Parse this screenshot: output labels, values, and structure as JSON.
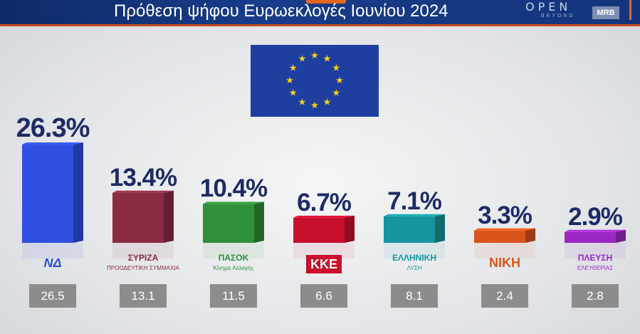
{
  "header": {
    "title": "Πρόθεση ψήφου Ευρωεκλογές Ιουνίου 2024",
    "logo_open": "OPEN",
    "logo_beyond": "BEYOND",
    "logo_mrb": "MRB"
  },
  "colors": {
    "header_bg": "#14357c",
    "accent": "#e8641e",
    "percent_text": "#1d2b66",
    "previous_box": "#8c8c8c",
    "eu_blue": "#1f3fa0",
    "eu_star": "#f7d417"
  },
  "chart_data": {
    "type": "bar",
    "title": "Πρόθεση ψήφου Ευρωεκλογές Ιουνίου 2024",
    "ylim": [
      0,
      30
    ],
    "categories": [
      "ND",
      "SYRIZA",
      "PASOK",
      "KKE",
      "ELLINIKI LYSI",
      "NIKI",
      "PLEFSI ELEFTHERIAS"
    ],
    "series": [
      {
        "values": [
          26.3,
          13.4,
          10.4,
          6.7,
          7.1,
          3.3,
          2.9
        ]
      }
    ],
    "value_labels": [
      "26.3%",
      "13.4%",
      "10.4%",
      "6.7%",
      "7.1%",
      "3.3%",
      "2.9%"
    ],
    "previous_values": [
      26.5,
      13.1,
      11.5,
      6.6,
      8.1,
      2.4,
      2.8
    ],
    "previous_labels": [
      "26.5",
      "13.1",
      "11.5",
      "6.6",
      "8.1",
      "2.4",
      "2.8"
    ],
    "bar_colors": [
      "#2f4fe0",
      "#8a2c44",
      "#2f8f3a",
      "#c8102e",
      "#17949c",
      "#d9541a",
      "#9b28c4"
    ],
    "grid": false,
    "legend": "none"
  },
  "parties": [
    {
      "logo_text": "ΝΔ",
      "logo_icon": "nd-logo-icon"
    },
    {
      "logo_text": "ΣΥΡΙΖΑ",
      "logo_sub": "ΠΡΟΟΔΕΥΤΙΚΗ ΣΥΜΜΑΧΙΑ",
      "logo_icon": "syriza-logo-icon"
    },
    {
      "logo_text": "ΠΑΣΟΚ",
      "logo_sub": "Κίνημα Αλλαγής",
      "logo_icon": "pasok-logo-icon"
    },
    {
      "logo_text": "ΚΚΕ",
      "logo_icon": "kke-logo-icon"
    },
    {
      "logo_text": "ΕΛΛΗΝΙΚΗ",
      "logo_sub": "ΛΥΣΗ",
      "logo_icon": "elliniki-lysi-logo-icon"
    },
    {
      "logo_text": "ΝΙΚΗ",
      "logo_icon": "niki-logo-icon"
    },
    {
      "logo_text": "ΠΛΕΥΣΗ",
      "logo_sub": "ΕΛΕΥΘΕΡΙΑΣ",
      "logo_icon": "plefsi-logo-icon"
    }
  ]
}
